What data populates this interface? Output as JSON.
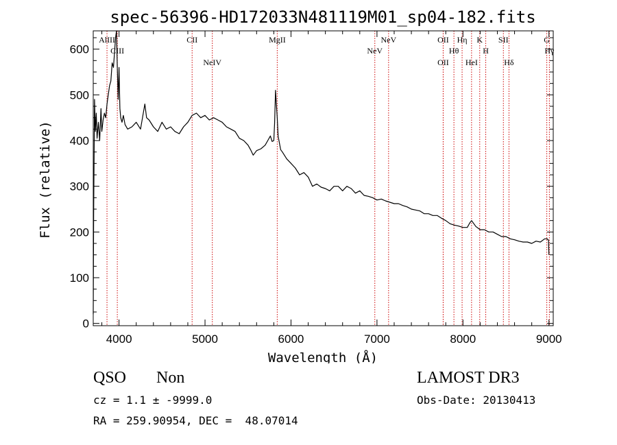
{
  "chart_data": {
    "type": "line",
    "title": "spec-56396-HD172033N481119M01_sp04-182.fits",
    "xlabel": "Wavelength (Å)",
    "ylabel": "Flux (relative)",
    "xlim": [
      3700,
      9050
    ],
    "ylim": [
      -5,
      640
    ],
    "x_ticks": [
      4000,
      5000,
      6000,
      7000,
      8000,
      9000
    ],
    "y_ticks": [
      0,
      100,
      200,
      300,
      400,
      500,
      600
    ],
    "grid": false,
    "series": [
      {
        "x": [
          3700,
          3705,
          3715,
          3725,
          3735,
          3745,
          3760,
          3775,
          3790,
          3800,
          3815,
          3830,
          3845,
          3860,
          3875,
          3890,
          3905,
          3920,
          3935,
          3950,
          3960,
          3970,
          3980,
          3990,
          4000,
          4010,
          4020,
          4035,
          4050,
          4070,
          4100,
          4150,
          4200,
          4250,
          4300,
          4320,
          4350,
          4400,
          4450,
          4500,
          4550,
          4600,
          4650,
          4700,
          4750,
          4800,
          4850,
          4900,
          4950,
          5000,
          5050,
          5100,
          5150,
          5200,
          5250,
          5300,
          5350,
          5400,
          5450,
          5500,
          5530,
          5560,
          5600,
          5650,
          5700,
          5730,
          5760,
          5780,
          5800,
          5810,
          5820,
          5830,
          5840,
          5850,
          5860,
          5880,
          5900,
          5950,
          6000,
          6050,
          6100,
          6150,
          6200,
          6250,
          6300,
          6350,
          6400,
          6450,
          6500,
          6550,
          6600,
          6650,
          6700,
          6750,
          6800,
          6850,
          6900,
          6950,
          7000,
          7050,
          7100,
          7150,
          7200,
          7250,
          7300,
          7350,
          7400,
          7450,
          7500,
          7550,
          7600,
          7650,
          7700,
          7750,
          7800,
          7850,
          7900,
          7950,
          8000,
          8050,
          8080,
          8100,
          8150,
          8200,
          8250,
          8300,
          8350,
          8400,
          8450,
          8500,
          8550,
          8600,
          8650,
          8700,
          8750,
          8800,
          8850,
          8900,
          8950,
          8980,
          8995,
          9000
        ],
        "values": [
          20,
          240,
          490,
          420,
          460,
          405,
          440,
          400,
          470,
          420,
          445,
          460,
          450,
          480,
          500,
          520,
          530,
          570,
          560,
          600,
          625,
          640,
          560,
          490,
          560,
          470,
          450,
          440,
          455,
          435,
          425,
          430,
          440,
          425,
          480,
          450,
          445,
          430,
          420,
          440,
          425,
          430,
          420,
          415,
          430,
          440,
          455,
          460,
          450,
          455,
          445,
          450,
          445,
          440,
          430,
          425,
          420,
          405,
          400,
          390,
          380,
          368,
          378,
          382,
          390,
          400,
          410,
          398,
          400,
          440,
          510,
          480,
          450,
          410,
          400,
          380,
          375,
          360,
          350,
          340,
          325,
          330,
          320,
          300,
          305,
          298,
          295,
          290,
          300,
          300,
          290,
          300,
          295,
          285,
          290,
          280,
          278,
          275,
          270,
          272,
          268,
          265,
          262,
          262,
          258,
          255,
          250,
          248,
          246,
          240,
          240,
          236,
          236,
          230,
          225,
          218,
          215,
          213,
          210,
          210,
          220,
          225,
          212,
          205,
          205,
          200,
          200,
          195,
          190,
          190,
          185,
          183,
          180,
          178,
          178,
          175,
          180,
          178,
          185,
          185,
          182,
          150
        ]
      }
    ],
    "lines": [
      {
        "label": "AlIII",
        "x": 3860
      },
      {
        "label": "CIII",
        "x": 3980
      },
      {
        "label": "CII",
        "x": 4850
      },
      {
        "label": "NeIV",
        "x": 5085
      },
      {
        "label": "MgII",
        "x": 5840
      },
      {
        "label": "NeV",
        "x": 6975
      },
      {
        "label": "NeV",
        "x": 7135
      },
      {
        "label": "OII",
        "x": 7770
      },
      {
        "label": "OII",
        "x": 7770
      },
      {
        "label": "Hθ",
        "x": 7895
      },
      {
        "label": "Hη",
        "x": 7990
      },
      {
        "label": "HeI",
        "x": 8100
      },
      {
        "label": "K",
        "x": 8195
      },
      {
        "label": "H",
        "x": 8265
      },
      {
        "label": "SII",
        "x": 8470
      },
      {
        "label": "Hδ",
        "x": 8535
      },
      {
        "label": "G",
        "x": 8975
      },
      {
        "label": "Hγ",
        "x": 9005
      }
    ]
  },
  "info": {
    "class_label": "QSO",
    "subclass_label": "Non",
    "survey": "LAMOST DR3",
    "cz": "cz = 1.1 ± -9999.0",
    "obs_date": "Obs-Date: 20130413",
    "radec": "RA = 259.90954, DEC =  48.07014"
  },
  "colors": {
    "spectrum": "#000000",
    "lines": "#cc0000",
    "axes": "#000000"
  }
}
